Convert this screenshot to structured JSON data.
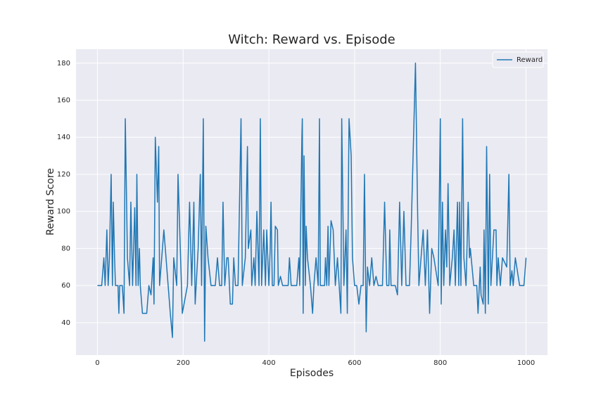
{
  "chart_data": {
    "type": "line",
    "title": "Witch: Reward vs. Episode",
    "xlabel": "Episodes",
    "ylabel": "Reward Score",
    "x": [
      0,
      10,
      15,
      18,
      22,
      25,
      28,
      32,
      35,
      37,
      40,
      42,
      48,
      50,
      52,
      58,
      62,
      65,
      70,
      75,
      78,
      82,
      87,
      90,
      92,
      95,
      98,
      100,
      105,
      115,
      120,
      125,
      130,
      132,
      135,
      140,
      143,
      145,
      150,
      155,
      160,
      165,
      170,
      175,
      178,
      185,
      188,
      192,
      198,
      210,
      215,
      220,
      225,
      228,
      235,
      240,
      243,
      247,
      250,
      253,
      258,
      265,
      275,
      280,
      285,
      290,
      293,
      297,
      302,
      305,
      310,
      315,
      318,
      322,
      328,
      335,
      338,
      345,
      350,
      352,
      358,
      360,
      365,
      368,
      372,
      377,
      380,
      383,
      388,
      392,
      395,
      400,
      403,
      405,
      408,
      412,
      415,
      420,
      422,
      427,
      432,
      445,
      448,
      452,
      465,
      470,
      472,
      477,
      478,
      480,
      482,
      485,
      487,
      490,
      497,
      502,
      505,
      510,
      515,
      518,
      520,
      530,
      532,
      535,
      538,
      540,
      545,
      550,
      555,
      560,
      568,
      570,
      575,
      580,
      583,
      587,
      592,
      595,
      600,
      605,
      610,
      615,
      620,
      623,
      627,
      630,
      635,
      640,
      645,
      650,
      655,
      665,
      670,
      675,
      680,
      682,
      685,
      695,
      700,
      705,
      710,
      715,
      720,
      728,
      732,
      742,
      747,
      750,
      755,
      760,
      765,
      770,
      775,
      780,
      785,
      795,
      800,
      802,
      805,
      808,
      812,
      815,
      818,
      822,
      828,
      832,
      835,
      840,
      843,
      845,
      848,
      852,
      855,
      860,
      865,
      868,
      870,
      878,
      885,
      888,
      893,
      895,
      900,
      902,
      905,
      908,
      912,
      915,
      918,
      925,
      930,
      932,
      935,
      940,
      945,
      955,
      960,
      963,
      967,
      970,
      975,
      985,
      990,
      995,
      1000
    ],
    "series": [
      {
        "name": "Reward",
        "color": "#1f77b4",
        "values": [
          60,
          60,
          75,
          60,
          90,
          60,
          75,
          120,
          60,
          105,
          75,
          60,
          60,
          45,
          60,
          60,
          45,
          150,
          75,
          60,
          105,
          60,
          102,
          60,
          120,
          60,
          80,
          60,
          45,
          45,
          60,
          55,
          75,
          50,
          140,
          105,
          135,
          60,
          75,
          90,
          75,
          60,
          45,
          32,
          75,
          60,
          120,
          90,
          45,
          60,
          105,
          60,
          105,
          50,
          80,
          120,
          60,
          150,
          30,
          92,
          75,
          60,
          60,
          75,
          60,
          60,
          105,
          60,
          75,
          75,
          50,
          50,
          75,
          60,
          60,
          150,
          60,
          75,
          135,
          80,
          90,
          60,
          75,
          60,
          100,
          60,
          150,
          60,
          90,
          60,
          90,
          60,
          80,
          105,
          60,
          60,
          92,
          90,
          60,
          65,
          60,
          60,
          75,
          60,
          60,
          75,
          60,
          140,
          150,
          45,
          130,
          60,
          92,
          75,
          60,
          45,
          60,
          75,
          60,
          150,
          60,
          60,
          75,
          60,
          92,
          60,
          95,
          90,
          60,
          75,
          45,
          150,
          60,
          90,
          45,
          150,
          130,
          75,
          60,
          60,
          50,
          60,
          60,
          120,
          35,
          70,
          60,
          75,
          60,
          65,
          60,
          60,
          105,
          60,
          60,
          90,
          60,
          60,
          55,
          105,
          60,
          100,
          60,
          60,
          90,
          180,
          100,
          60,
          75,
          90,
          60,
          90,
          45,
          80,
          75,
          60,
          150,
          50,
          105,
          60,
          90,
          70,
          115,
          60,
          75,
          90,
          60,
          105,
          60,
          105,
          60,
          150,
          75,
          60,
          105,
          75,
          80,
          60,
          60,
          45,
          70,
          55,
          50,
          90,
          45,
          135,
          50,
          120,
          60,
          90,
          90,
          60,
          75,
          60,
          75,
          70,
          120,
          60,
          68,
          60,
          75,
          60,
          60,
          60,
          75
        ]
      }
    ],
    "xlim": [
      -50,
      1050
    ],
    "ylim": [
      22.5,
      187.5
    ],
    "xticks": [
      0,
      200,
      400,
      600,
      800,
      1000
    ],
    "yticks": [
      40,
      60,
      80,
      100,
      120,
      140,
      160,
      180
    ],
    "grid": true,
    "legend": "upper right"
  }
}
